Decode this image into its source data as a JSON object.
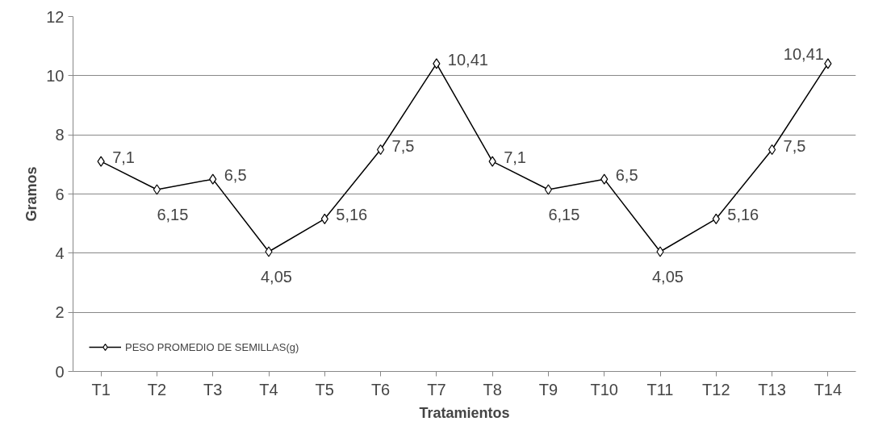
{
  "chart_data": {
    "type": "line",
    "xlabel": "Tratamientos",
    "ylabel": "Gramos",
    "categories": [
      "T1",
      "T2",
      "T3",
      "T4",
      "T5",
      "T6",
      "T7",
      "T8",
      "T9",
      "T10",
      "T11",
      "T12",
      "T13",
      "T14"
    ],
    "series": [
      {
        "name": "PESO PROMEDIO DE SEMILLAS(g)",
        "color": "#000000",
        "values": [
          7.1,
          6.15,
          6.5,
          4.05,
          5.16,
          7.5,
          10.41,
          7.1,
          6.15,
          6.5,
          4.05,
          5.16,
          7.5,
          10.41
        ],
        "value_labels": [
          "7,1",
          "6,15",
          "6,5",
          "4,05",
          "5,16",
          "7,5",
          "10,41",
          "7,1",
          "6,15",
          "6,5",
          "4,05",
          "5,16",
          "7,5",
          "10,41"
        ]
      }
    ],
    "ylim": [
      0,
      12
    ],
    "yticks": [
      0,
      2,
      4,
      6,
      8,
      10,
      12
    ],
    "grid": "y",
    "legend": "bottom left",
    "marker": "diamond",
    "line_style": "solid"
  }
}
